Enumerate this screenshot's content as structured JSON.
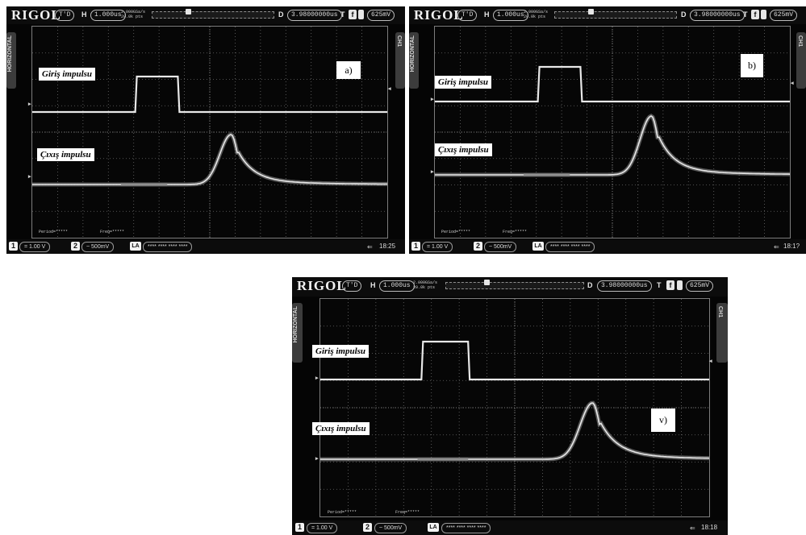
{
  "scope": {
    "brand": "RIGOL",
    "mode": "T'D",
    "horizontal_label": "H",
    "timebase": "1.000us",
    "sample_rate": "2.000GSa/s",
    "memory_depth": "20.0k pts",
    "trigger_position_label": "D",
    "delay": "3.98000000us",
    "trigger_label": "T",
    "trigger_level": "625mV",
    "side_left": "HORIZONTAL",
    "side_right": "CH1",
    "ch1_number": "1",
    "ch1_scale": "= 1.00 V",
    "ch2_number": "2",
    "ch2_scale": "~ 500mV",
    "la_label": "LA",
    "la_value": "**** **** **** ****",
    "period_text": "Period=*****",
    "freq_text": "Freq=*****",
    "usb_icon": "usb-icon"
  },
  "screens": [
    {
      "id": "a",
      "time": "18:25",
      "input_label": "Giriş impulsu",
      "output_label": "Çıxış impulsu",
      "tag": "a)"
    },
    {
      "id": "b",
      "time": "18:1?",
      "input_label": "Giriş impulsu",
      "output_label": "Çıxış impulsu",
      "tag": "b)"
    },
    {
      "id": "v",
      "time": "18:18",
      "input_label": "Giriş impulsu",
      "output_label": "Çıxış impulsu",
      "tag": "v)"
    }
  ],
  "colors": {
    "background": "#050505",
    "grid": "#6a6a6a",
    "trace": "#e8e8e8",
    "frame": "#ffffff"
  }
}
